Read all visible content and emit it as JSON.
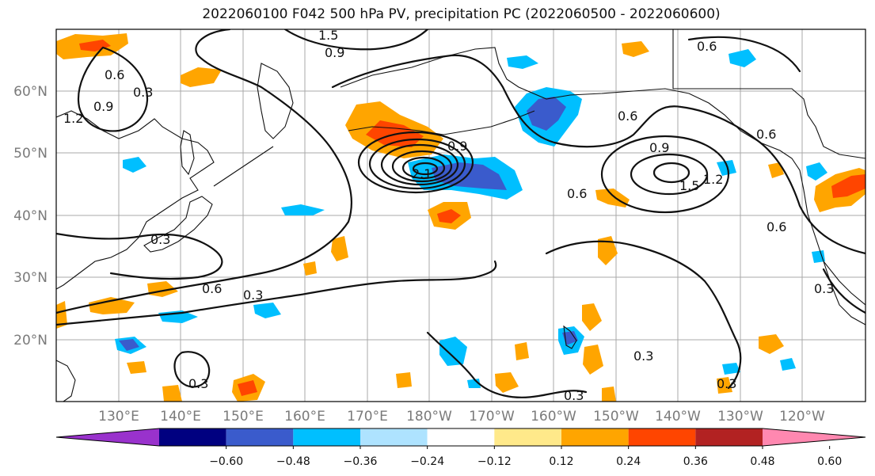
{
  "title": "2022060100 F042 500 hPa PV, precipitation PC (2022060500 - 2022060600)",
  "lat_labels": [
    "60°N",
    "50°N",
    "40°N",
    "30°N",
    "20°N"
  ],
  "lon_labels": [
    "130°E",
    "140°E",
    "150°E",
    "160°E",
    "170°E",
    "180°W",
    "170°W",
    "160°W",
    "150°W",
    "140°W",
    "130°W",
    "120°W"
  ],
  "colorbar": {
    "colors": [
      "#9932cc",
      "#000080",
      "#3a5bcc",
      "#00bfff",
      "#aee3ff",
      "#ffffff",
      "#ffe98a",
      "#ffa500",
      "#ff4500",
      "#b22222",
      "#ff88b0"
    ],
    "tick_labels": [
      "−0.60",
      "−0.48",
      "−0.36",
      "−0.24",
      "−0.12",
      "0.12",
      "0.24",
      "0.36",
      "0.48",
      "0.60"
    ]
  },
  "contour_labels": [
    "1.5",
    "0.9",
    "0.6",
    "0.6",
    "0.3",
    "0.9",
    "1.2",
    "0.6",
    "0.9",
    "1.5",
    "1.2",
    "0.6",
    "0.6",
    "0.6",
    "0.9",
    "2.1",
    "0.3",
    "0.6",
    "0.3",
    "0.3",
    "0.3",
    "0.3",
    "0.3",
    "0.3"
  ],
  "legend_colors": {
    "positive_strong": "#ff4500",
    "positive": "#ffa500",
    "positive_weak": "#ffe98a",
    "negative_weak": "#aee3ff",
    "negative": "#00bfff",
    "negative_strong": "#3a5bcc"
  }
}
